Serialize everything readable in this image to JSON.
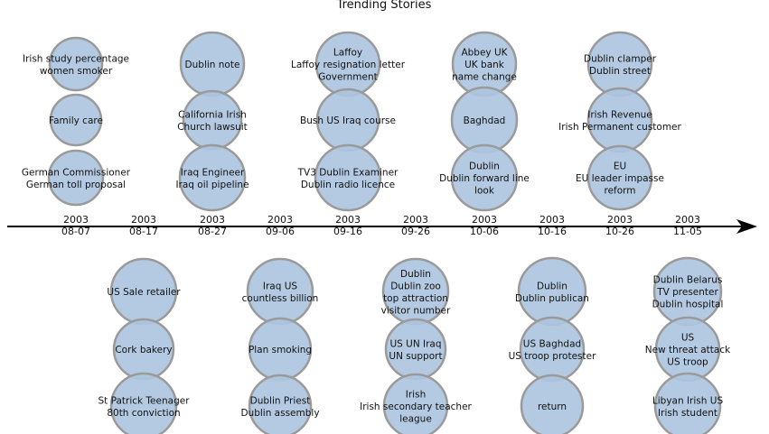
{
  "title": "Trending Stories",
  "colors": {
    "bubble_fill": "#adc6e0",
    "bubble_stroke": "#9a9a9a",
    "axis": "#000000"
  },
  "ticks": [
    {
      "year": "2003",
      "date": "08-07"
    },
    {
      "year": "2003",
      "date": "08-17"
    },
    {
      "year": "2003",
      "date": "08-27"
    },
    {
      "year": "2003",
      "date": "09-06"
    },
    {
      "year": "2003",
      "date": "09-16"
    },
    {
      "year": "2003",
      "date": "09-26"
    },
    {
      "year": "2003",
      "date": "10-06"
    },
    {
      "year": "2003",
      "date": "10-16"
    },
    {
      "year": "2003",
      "date": "10-26"
    },
    {
      "year": "2003",
      "date": "11-05"
    }
  ],
  "columns": [
    {
      "side": "above",
      "stories": [
        [
          "Irish study percentage",
          "women smoker"
        ],
        [
          "Family care"
        ],
        [
          "German Commissioner",
          "German toll proposal"
        ]
      ]
    },
    {
      "side": "below",
      "stories": [
        [
          "US Sale retailer"
        ],
        [
          "Cork bakery"
        ],
        [
          "St Patrick Teenager",
          "80th conviction"
        ]
      ]
    },
    {
      "side": "above",
      "stories": [
        [
          "Dublin note"
        ],
        [
          "California Irish",
          "Church lawsuit"
        ],
        [
          "Iraq Engineer",
          "Iraq oil pipeline"
        ]
      ]
    },
    {
      "side": "below",
      "stories": [
        [
          "Iraq US",
          "countless billion"
        ],
        [
          "Plan smoking"
        ],
        [
          "Dublin Priest",
          "Dublin assembly"
        ]
      ]
    },
    {
      "side": "above",
      "stories": [
        [
          "Laffoy",
          "Laffoy resignation letter",
          "Government"
        ],
        [
          "Bush US Iraq course"
        ],
        [
          "TV3 Dublin Examiner",
          "Dublin radio licence"
        ]
      ]
    },
    {
      "side": "below",
      "stories": [
        [
          "Dublin",
          "Dublin zoo",
          "top attraction",
          "visitor number"
        ],
        [
          "US UN Iraq",
          "UN support"
        ],
        [
          "Irish",
          "Irish secondary teacher",
          "league"
        ]
      ]
    },
    {
      "side": "above",
      "stories": [
        [
          "Abbey UK",
          "UK bank",
          "name change"
        ],
        [
          "Baghdad"
        ],
        [
          "Dublin",
          "Dublin forward line",
          "look"
        ]
      ]
    },
    {
      "side": "below",
      "stories": [
        [
          "Dublin",
          "Dublin publican"
        ],
        [
          "US Baghdad",
          "US troop protester"
        ],
        [
          "return"
        ]
      ]
    },
    {
      "side": "above",
      "stories": [
        [
          "Dublin clamper",
          "Dublin street"
        ],
        [
          "Irish Revenue",
          "Irish Permanent customer"
        ],
        [
          "EU",
          "EU leader impasse",
          "reform"
        ]
      ]
    },
    {
      "side": "below",
      "stories": [
        [
          "Dublin Belarus",
          "TV presenter",
          "Dublin hospital"
        ],
        [
          "US",
          "New threat attack",
          "US troop"
        ],
        [
          "Libyan Irish US",
          "Irish student"
        ]
      ]
    }
  ]
}
